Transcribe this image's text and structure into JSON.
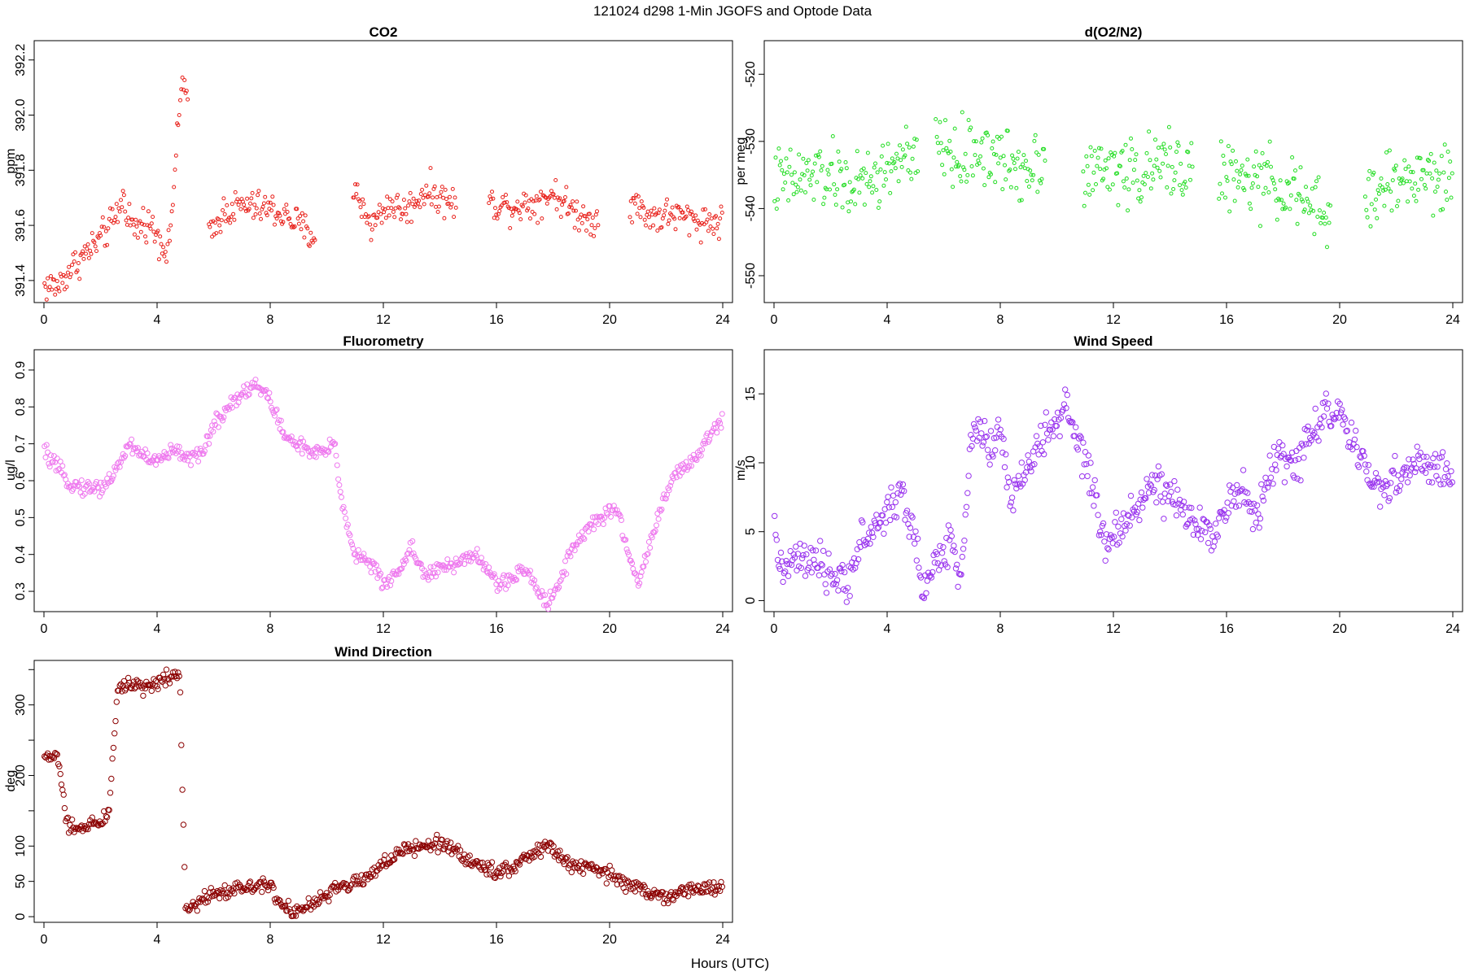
{
  "figure": {
    "title": "121024   d298   1-Min  JGOFS and Optode Data",
    "xlabel": "Hours (UTC)"
  },
  "chart_data": [
    {
      "id": "co2",
      "type": "scatter",
      "title": "CO2",
      "ylabel": "ppm",
      "color": "#e8201a",
      "xlim": [
        0,
        24
      ],
      "ylim": [
        391.32,
        392.27
      ],
      "xticks": [
        0,
        4,
        8,
        12,
        16,
        20,
        24
      ],
      "yticks": [
        391.4,
        391.6,
        391.8,
        392.0,
        392.2
      ],
      "ytick_labels": [
        "391.4",
        "391.6",
        "391.8",
        "392.0",
        "392.2"
      ],
      "series": [
        {
          "x": [],
          "y": []
        }
      ],
      "outline": [
        [
          0.5,
          391.38
        ],
        [
          1.0,
          391.45
        ],
        [
          1.5,
          391.5
        ],
        [
          2.0,
          391.55
        ],
        [
          2.5,
          391.62
        ],
        [
          2.8,
          391.7
        ],
        [
          3.2,
          391.58
        ],
        [
          3.6,
          391.62
        ],
        [
          4.0,
          391.57
        ],
        [
          4.4,
          391.5
        ],
        [
          4.9,
          392.15
        ],
        [
          5.9,
          391.55
        ],
        [
          6.3,
          391.65
        ],
        [
          7.0,
          391.67
        ],
        [
          8.0,
          391.66
        ],
        [
          8.8,
          391.62
        ],
        [
          9.5,
          391.56
        ],
        [
          11.0,
          391.72
        ],
        [
          11.6,
          391.6
        ],
        [
          12.2,
          391.68
        ],
        [
          12.8,
          391.65
        ],
        [
          13.5,
          391.73
        ],
        [
          14.2,
          391.69
        ],
        [
          14.5,
          391.68
        ],
        [
          15.8,
          391.68
        ],
        [
          16.5,
          391.67
        ],
        [
          17.3,
          391.68
        ],
        [
          18.0,
          391.72
        ],
        [
          18.6,
          391.66
        ],
        [
          19.3,
          391.62
        ],
        [
          20.8,
          391.68
        ],
        [
          21.5,
          391.63
        ],
        [
          22.2,
          391.64
        ],
        [
          23.0,
          391.62
        ],
        [
          23.9,
          391.61
        ]
      ],
      "gaps": [
        [
          5.1,
          5.8
        ],
        [
          9.6,
          10.9
        ],
        [
          14.6,
          15.7
        ],
        [
          19.6,
          20.7
        ]
      ]
    },
    {
      "id": "o2n2",
      "type": "scatter",
      "title": "d(O2/N2)",
      "ylabel": "per meg",
      "color": "#22dd22",
      "xlim": [
        0,
        24
      ],
      "ylim": [
        -554,
        -515
      ],
      "xticks": [
        0,
        4,
        8,
        12,
        16,
        20,
        24
      ],
      "yticks": [
        -550,
        -540,
        -530,
        -520
      ],
      "ytick_labels": [
        "-550",
        "-540",
        "-530",
        "-520"
      ],
      "series": [
        {
          "x": [],
          "y": []
        }
      ],
      "outline": [
        [
          0.5,
          -536
        ],
        [
          1.5,
          -535
        ],
        [
          2.5,
          -536
        ],
        [
          3.0,
          -537
        ],
        [
          3.8,
          -535
        ],
        [
          4.5,
          -532
        ],
        [
          5.0,
          -534
        ],
        [
          5.8,
          -530
        ],
        [
          6.5,
          -533
        ],
        [
          7.2,
          -531
        ],
        [
          8.0,
          -533
        ],
        [
          8.8,
          -534
        ],
        [
          9.5,
          -532
        ],
        [
          11.0,
          -535
        ],
        [
          12.0,
          -534
        ],
        [
          13.0,
          -535
        ],
        [
          14.0,
          -533
        ],
        [
          14.7,
          -534
        ],
        [
          15.8,
          -535
        ],
        [
          16.5,
          -536
        ],
        [
          17.3,
          -536
        ],
        [
          18.2,
          -537
        ],
        [
          19.0,
          -540
        ],
        [
          19.6,
          -542
        ],
        [
          21.0,
          -538
        ],
        [
          22.0,
          -536
        ],
        [
          23.0,
          -535
        ],
        [
          23.9,
          -536
        ]
      ],
      "gaps": [
        [
          5.1,
          5.7
        ],
        [
          9.6,
          10.9
        ],
        [
          14.8,
          15.7
        ],
        [
          19.7,
          20.9
        ]
      ]
    },
    {
      "id": "fluor",
      "type": "scatter",
      "title": "Fluorometry",
      "ylabel": "ug/l",
      "color": "#ee77ee",
      "xlim": [
        0,
        24
      ],
      "ylim": [
        0.245,
        0.955
      ],
      "xticks": [
        0,
        4,
        8,
        12,
        16,
        20,
        24
      ],
      "yticks": [
        0.3,
        0.4,
        0.5,
        0.6,
        0.7,
        0.8,
        0.9
      ],
      "ytick_labels": [
        "0.3",
        "0.4",
        "0.5",
        "0.6",
        "0.7",
        "0.8",
        "0.9"
      ],
      "series": [
        {
          "x": [],
          "y": []
        }
      ],
      "outline": [
        [
          0.0,
          0.68
        ],
        [
          0.5,
          0.63
        ],
        [
          1.0,
          0.59
        ],
        [
          1.5,
          0.58
        ],
        [
          2.0,
          0.58
        ],
        [
          2.5,
          0.62
        ],
        [
          3.0,
          0.7
        ],
        [
          3.5,
          0.67
        ],
        [
          4.0,
          0.65
        ],
        [
          4.5,
          0.68
        ],
        [
          5.0,
          0.67
        ],
        [
          5.5,
          0.66
        ],
        [
          6.0,
          0.75
        ],
        [
          6.5,
          0.8
        ],
        [
          7.0,
          0.84
        ],
        [
          7.5,
          0.86
        ],
        [
          8.0,
          0.82
        ],
        [
          8.5,
          0.72
        ],
        [
          9.0,
          0.7
        ],
        [
          9.5,
          0.67
        ],
        [
          10.0,
          0.68
        ],
        [
          10.3,
          0.7
        ],
        [
          10.5,
          0.55
        ],
        [
          11.0,
          0.4
        ],
        [
          11.5,
          0.38
        ],
        [
          12.0,
          0.32
        ],
        [
          12.5,
          0.35
        ],
        [
          13.0,
          0.42
        ],
        [
          13.5,
          0.34
        ],
        [
          14.0,
          0.36
        ],
        [
          14.5,
          0.37
        ],
        [
          15.0,
          0.4
        ],
        [
          15.5,
          0.38
        ],
        [
          16.0,
          0.32
        ],
        [
          16.5,
          0.33
        ],
        [
          17.0,
          0.36
        ],
        [
          17.5,
          0.3
        ],
        [
          17.8,
          0.27
        ],
        [
          18.2,
          0.32
        ],
        [
          18.7,
          0.42
        ],
        [
          19.2,
          0.47
        ],
        [
          19.7,
          0.5
        ],
        [
          20.3,
          0.52
        ],
        [
          20.6,
          0.42
        ],
        [
          21.0,
          0.32
        ],
        [
          21.5,
          0.45
        ],
        [
          22.0,
          0.57
        ],
        [
          22.5,
          0.63
        ],
        [
          23.0,
          0.65
        ],
        [
          23.5,
          0.72
        ],
        [
          24.0,
          0.77
        ]
      ],
      "gaps": []
    },
    {
      "id": "wspd",
      "type": "scatter",
      "title": "Wind Speed",
      "ylabel": "m/s",
      "color": "#9933ee",
      "xlim": [
        0,
        24
      ],
      "ylim": [
        -0.8,
        18.2
      ],
      "xticks": [
        0,
        4,
        8,
        12,
        16,
        20,
        24
      ],
      "yticks": [
        0,
        5,
        10,
        15
      ],
      "ytick_labels": [
        "0",
        "5",
        "10",
        "15"
      ],
      "series": [
        {
          "x": [],
          "y": []
        }
      ],
      "outline": [
        [
          0.0,
          5.0
        ],
        [
          0.3,
          2.0
        ],
        [
          0.8,
          3.0
        ],
        [
          1.5,
          2.5
        ],
        [
          2.0,
          2.0
        ],
        [
          2.5,
          1.0
        ],
        [
          3.0,
          4.0
        ],
        [
          3.5,
          5.0
        ],
        [
          4.0,
          6.5
        ],
        [
          4.5,
          8.0
        ],
        [
          5.0,
          4.0
        ],
        [
          5.3,
          0.8
        ],
        [
          5.8,
          3.0
        ],
        [
          6.3,
          4.5
        ],
        [
          6.6,
          1.5
        ],
        [
          6.9,
          10.0
        ],
        [
          7.2,
          13.0
        ],
        [
          7.6,
          11.0
        ],
        [
          8.0,
          12.0
        ],
        [
          8.4,
          7.0
        ],
        [
          8.8,
          9.0
        ],
        [
          9.3,
          11.0
        ],
        [
          9.8,
          12.5
        ],
        [
          10.3,
          14.0
        ],
        [
          10.8,
          11.0
        ],
        [
          11.2,
          9.0
        ],
        [
          11.6,
          4.0
        ],
        [
          12.2,
          5.0
        ],
        [
          12.8,
          7.0
        ],
        [
          13.5,
          8.5
        ],
        [
          14.2,
          7.0
        ],
        [
          14.8,
          5.5
        ],
        [
          15.5,
          5.0
        ],
        [
          16.0,
          7.0
        ],
        [
          16.5,
          8.0
        ],
        [
          17.0,
          6.0
        ],
        [
          17.5,
          9.0
        ],
        [
          18.0,
          10.5
        ],
        [
          18.5,
          10.0
        ],
        [
          19.0,
          12.0
        ],
        [
          19.5,
          14.0
        ],
        [
          20.0,
          13.5
        ],
        [
          20.5,
          11.0
        ],
        [
          21.0,
          9.0
        ],
        [
          21.5,
          8.0
        ],
        [
          22.0,
          9.0
        ],
        [
          22.5,
          9.5
        ],
        [
          23.0,
          10.0
        ],
        [
          23.5,
          9.5
        ],
        [
          24.0,
          9.0
        ]
      ],
      "gaps": []
    },
    {
      "id": "wdir",
      "type": "scatter",
      "title": "Wind Direction",
      "ylabel": "deg",
      "color": "#8b0000",
      "xlim": [
        0,
        24
      ],
      "ylim": [
        -8,
        363
      ],
      "xticks": [
        0,
        4,
        8,
        12,
        16,
        20,
        24
      ],
      "yticks": [
        0,
        50,
        100,
        150,
        200,
        250,
        300,
        350
      ],
      "ytick_labels": [
        "0",
        "50",
        "100",
        "",
        "200",
        "",
        "300",
        ""
      ],
      "series": [
        {
          "x": [],
          "y": []
        }
      ],
      "outline": [
        [
          0.0,
          225
        ],
        [
          0.5,
          228
        ],
        [
          0.8,
          130
        ],
        [
          1.2,
          120
        ],
        [
          1.6,
          135
        ],
        [
          2.0,
          130
        ],
        [
          2.3,
          150
        ],
        [
          2.6,
          325
        ],
        [
          3.2,
          330
        ],
        [
          3.8,
          325
        ],
        [
          4.3,
          340
        ],
        [
          4.8,
          345
        ],
        [
          5.0,
          15
        ],
        [
          5.5,
          20
        ],
        [
          6.0,
          35
        ],
        [
          7.0,
          40
        ],
        [
          7.5,
          45
        ],
        [
          8.0,
          50
        ],
        [
          8.3,
          20
        ],
        [
          8.8,
          8
        ],
        [
          9.3,
          12
        ],
        [
          10.0,
          30
        ],
        [
          10.5,
          45
        ],
        [
          11.0,
          45
        ],
        [
          11.5,
          60
        ],
        [
          12.0,
          75
        ],
        [
          12.5,
          90
        ],
        [
          13.0,
          95
        ],
        [
          13.5,
          100
        ],
        [
          14.0,
          105
        ],
        [
          14.5,
          95
        ],
        [
          15.0,
          80
        ],
        [
          15.5,
          70
        ],
        [
          16.0,
          65
        ],
        [
          16.5,
          70
        ],
        [
          17.0,
          80
        ],
        [
          17.5,
          95
        ],
        [
          17.9,
          100
        ],
        [
          18.3,
          80
        ],
        [
          19.0,
          70
        ],
        [
          19.5,
          65
        ],
        [
          20.0,
          60
        ],
        [
          20.5,
          50
        ],
        [
          21.0,
          40
        ],
        [
          21.5,
          30
        ],
        [
          22.0,
          30
        ],
        [
          22.5,
          35
        ],
        [
          23.0,
          38
        ],
        [
          23.5,
          40
        ],
        [
          24.0,
          45
        ]
      ],
      "gaps": []
    }
  ]
}
